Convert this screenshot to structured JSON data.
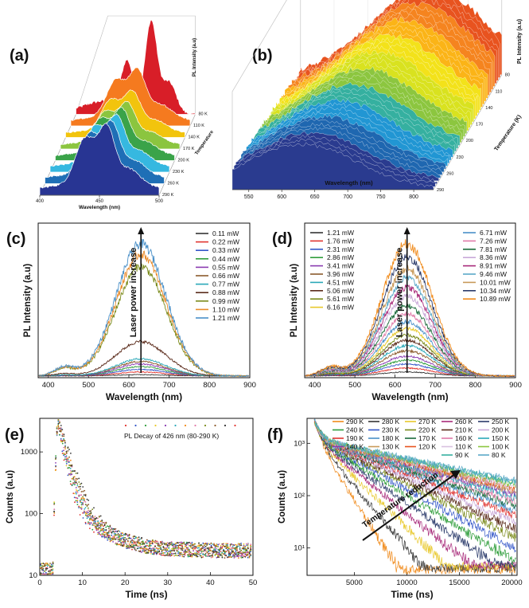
{
  "chart_data": [
    {
      "panel": "(a)",
      "type": "area",
      "xlabel": "Wavelength (nm)",
      "ylabel": "PL Intensity (a.u)",
      "zlabel": "Temperature",
      "xlim": [
        400,
        500
      ],
      "x_ticks": [
        "400",
        "450",
        "500"
      ],
      "series_labels": [
        "80 K",
        "110 K",
        "140 K",
        "170 K",
        "200 K",
        "230 K",
        "260 K",
        "290 K"
      ],
      "colors": [
        "#d81e28",
        "#f57a1f",
        "#f2c40d",
        "#8bc53f",
        "#3aa349",
        "#36b8e0",
        "#1f6fb6",
        "#283593"
      ]
    },
    {
      "panel": "(b)",
      "type": "area",
      "xlabel": "Wavelength (nm)",
      "ylabel": "PL Intensity (a.u)",
      "zlabel": "Temperature (K)",
      "xlim": [
        525,
        830
      ],
      "x_ticks": [
        "550",
        "600",
        "650",
        "700",
        "750",
        "800"
      ],
      "z_ticks": [
        "80",
        "110",
        "140",
        "170",
        "200",
        "230",
        "260",
        "290"
      ],
      "colors": [
        "#e8531f",
        "#f5841f",
        "#fbb417",
        "#f3e21a",
        "#d9e21f",
        "#8cc63f",
        "#35b0a0",
        "#2196d3",
        "#1f67b0",
        "#2a3b8f"
      ]
    },
    {
      "panel": "(c)",
      "type": "line",
      "xlabel": "Wavelength (nm)",
      "ylabel": "PL Intensity (a.u)",
      "xlim": [
        375,
        900
      ],
      "x_ticks": [
        "400",
        "500",
        "600",
        "700",
        "800",
        "900"
      ],
      "annotation": "Laser power increase",
      "peak_x": 630,
      "series": [
        {
          "name": "0.11 mW",
          "color": "#333333",
          "peak": 0.01
        },
        {
          "name": "0.22 mW",
          "color": "#e0342f",
          "peak": 0.03
        },
        {
          "name": "0.33 mW",
          "color": "#3356c8",
          "peak": 0.05
        },
        {
          "name": "0.44 mW",
          "color": "#2e9d3a",
          "peak": 0.07
        },
        {
          "name": "0.55 mW",
          "color": "#8a3bb0",
          "peak": 0.09
        },
        {
          "name": "0.66 mW",
          "color": "#8b5a2b",
          "peak": 0.11
        },
        {
          "name": "0.77 mW",
          "color": "#2aa8b8",
          "peak": 0.13
        },
        {
          "name": "0.88 mW",
          "color": "#5a2a1a",
          "peak": 0.26
        },
        {
          "name": "0.99 mW",
          "color": "#7a8a1a",
          "peak": 0.83
        },
        {
          "name": "1.10 mW",
          "color": "#e88a2a",
          "peak": 0.92
        },
        {
          "name": "1.21 mW",
          "color": "#4a90c8",
          "peak": 1.0
        }
      ]
    },
    {
      "panel": "(d)",
      "type": "line",
      "xlabel": "Wavelength (nm)",
      "ylabel": "PL Intensity (a.u)",
      "xlim": [
        375,
        900
      ],
      "x_ticks": [
        "400",
        "500",
        "600",
        "700",
        "800",
        "900"
      ],
      "annotation": "Laser power increase",
      "peak_x": 630,
      "series": [
        {
          "name": "1.21 mW",
          "color": "#333333",
          "peak": 0.03
        },
        {
          "name": "1.76 mW",
          "color": "#e0342f",
          "peak": 0.06
        },
        {
          "name": "2.31 mW",
          "color": "#3356c8",
          "peak": 0.09
        },
        {
          "name": "2.86 mW",
          "color": "#2e9d3a",
          "peak": 0.12
        },
        {
          "name": "3.41 mW",
          "color": "#8a3bb0",
          "peak": 0.15
        },
        {
          "name": "3.96 mW",
          "color": "#8b5a2b",
          "peak": 0.19
        },
        {
          "name": "4.51 mW",
          "color": "#2aa8b8",
          "peak": 0.23
        },
        {
          "name": "5.06 mW",
          "color": "#5a2a1a",
          "peak": 0.27
        },
        {
          "name": "5.61 mW",
          "color": "#7a8a1a",
          "peak": 0.31
        },
        {
          "name": "6.16 mW",
          "color": "#e8c82a",
          "peak": 0.36
        },
        {
          "name": "6.71 mW",
          "color": "#4a90c8",
          "peak": 0.41
        },
        {
          "name": "7.26 mW",
          "color": "#e07aa8",
          "peak": 0.47
        },
        {
          "name": "7.81 mW",
          "color": "#1a6a3a",
          "peak": 0.53
        },
        {
          "name": "8.36 mW",
          "color": "#c8a8d8",
          "peak": 0.6
        },
        {
          "name": "8.91 mW",
          "color": "#a82a7a",
          "peak": 0.67
        },
        {
          "name": "9.46 mW",
          "color": "#5aa8c8",
          "peak": 0.74
        },
        {
          "name": "10.01 mW",
          "color": "#c89a5a",
          "peak": 0.81
        },
        {
          "name": "10.34 mW",
          "color": "#2a3a6a",
          "peak": 0.9
        },
        {
          "name": "10.89 mW",
          "color": "#f08a1a",
          "peak": 1.0
        }
      ]
    },
    {
      "panel": "(e)",
      "type": "scatter",
      "xlabel": "Time (ns)",
      "ylabel": "Counts (a.u)",
      "xlim": [
        0,
        50
      ],
      "ylim": [
        10,
        3500
      ],
      "yscale": "log",
      "x_ticks": [
        "0",
        "10",
        "20",
        "30",
        "40",
        "50"
      ],
      "y_ticks": [
        "10",
        "100",
        "1000"
      ],
      "legend": "PL Decay of 426 nm (80-290 K)",
      "peak_time": 4.2,
      "peak_counts": 3000,
      "floor_counts": 25,
      "colors": [
        "#e0342f",
        "#3356c8",
        "#2e9d3a",
        "#e8c82a",
        "#8a3bb0",
        "#2aa8b8",
        "#f08a1a",
        "#e07aa8",
        "#7a8a1a",
        "#8b5a2b",
        "#333333"
      ]
    },
    {
      "panel": "(f)",
      "type": "line",
      "xlabel": "Time (ns)",
      "ylabel": "Counts (a.u)",
      "xlim": [
        500,
        20500
      ],
      "ylim": [
        3,
        3000
      ],
      "yscale": "log",
      "x_ticks": [
        "5000",
        "10000",
        "15000",
        "20000"
      ],
      "y_ticks": [
        "10¹",
        "10²",
        "10³"
      ],
      "y_tick_values": [
        10,
        100,
        1000
      ],
      "annotation": "Temperature reduction",
      "series": [
        {
          "name": "290 K",
          "color": "#f08a1a"
        },
        {
          "name": "280 K",
          "color": "#333333"
        },
        {
          "name": "270 K",
          "color": "#e8c82a"
        },
        {
          "name": "260 K",
          "color": "#a82a7a"
        },
        {
          "name": "250 K",
          "color": "#2a3a6a"
        },
        {
          "name": "240 K",
          "color": "#2e9d3a"
        },
        {
          "name": "230 K",
          "color": "#3356c8"
        },
        {
          "name": "220 K",
          "color": "#7a8a1a"
        },
        {
          "name": "210 K",
          "color": "#5a2a1a"
        },
        {
          "name": "200 K",
          "color": "#c8a8d8"
        },
        {
          "name": "190 K",
          "color": "#e0342f"
        },
        {
          "name": "180 K",
          "color": "#4a90c8"
        },
        {
          "name": "170 K",
          "color": "#1a6a3a"
        },
        {
          "name": "160 K",
          "color": "#e07aa8"
        },
        {
          "name": "150 K",
          "color": "#2aa8b8"
        },
        {
          "name": "140 K",
          "color": "#8a3bb0"
        },
        {
          "name": "130 K",
          "color": "#c89a5a"
        },
        {
          "name": "120 K",
          "color": "#e8531f"
        },
        {
          "name": "110 K",
          "color": "#d9c2e0"
        },
        {
          "name": "100 K",
          "color": "#8cc63f"
        },
        {
          "name": "90 K",
          "color": "#35b0a0"
        },
        {
          "name": "80 K",
          "color": "#5aa8c8"
        }
      ]
    }
  ]
}
